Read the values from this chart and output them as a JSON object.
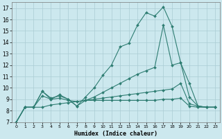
{
  "xlabel": "Humidex (Indice chaleur)",
  "background_color": "#cce8ee",
  "grid_color": "#aaccd4",
  "line_color": "#2e7d72",
  "xlim": [
    -0.5,
    23.5
  ],
  "ylim": [
    7,
    17.5
  ],
  "yticks": [
    7,
    8,
    9,
    10,
    11,
    12,
    13,
    14,
    15,
    16,
    17
  ],
  "xticks": [
    0,
    1,
    2,
    3,
    4,
    5,
    6,
    7,
    8,
    9,
    10,
    11,
    12,
    13,
    14,
    15,
    16,
    17,
    18,
    19,
    20,
    21,
    22,
    23
  ],
  "series": [
    [
      7.0,
      8.3,
      8.3,
      9.7,
      9.0,
      9.4,
      9.0,
      8.4,
      9.2,
      10.0,
      11.1,
      12.0,
      13.6,
      13.9,
      15.5,
      16.6,
      16.3,
      17.1,
      15.4,
      12.2,
      9.2,
      8.4,
      8.3,
      8.3
    ],
    [
      7.0,
      8.3,
      8.3,
      9.7,
      9.1,
      9.3,
      9.0,
      8.4,
      8.9,
      9.2,
      9.6,
      10.0,
      10.4,
      10.8,
      11.2,
      11.5,
      11.8,
      15.5,
      12.0,
      12.2,
      10.4,
      8.4,
      8.3,
      8.3
    ],
    [
      7.0,
      8.3,
      8.3,
      9.3,
      9.0,
      9.1,
      8.9,
      8.8,
      8.9,
      9.0,
      9.1,
      9.2,
      9.3,
      9.4,
      9.5,
      9.6,
      9.7,
      9.8,
      9.9,
      10.4,
      8.6,
      8.4,
      8.3,
      8.3
    ],
    [
      7.0,
      8.3,
      8.3,
      8.3,
      8.5,
      8.6,
      8.7,
      8.8,
      8.9,
      8.9,
      8.9,
      8.9,
      8.9,
      8.9,
      8.9,
      8.9,
      8.9,
      9.0,
      9.0,
      9.1,
      8.4,
      8.3,
      8.3,
      8.3
    ]
  ]
}
